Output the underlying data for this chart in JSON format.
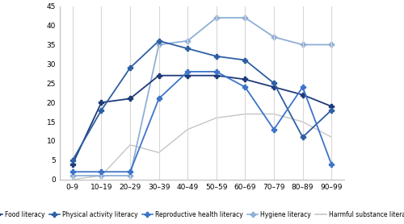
{
  "x_labels": [
    "0–9",
    "10–19",
    "20–29",
    "30–39",
    "40–49",
    "50–59",
    "60–69",
    "70–79",
    "80–89",
    "90–99"
  ],
  "series": [
    {
      "name": "Food literacy",
      "values": [
        4,
        20,
        21,
        27,
        27,
        27,
        26,
        24,
        22,
        19
      ],
      "color": "#1f3a7a",
      "marker": "P",
      "markersize": 4,
      "linewidth": 1.3,
      "zorder": 3
    },
    {
      "name": "Physical activity literacy",
      "values": [
        5,
        18,
        29,
        36,
        34,
        32,
        31,
        25,
        11,
        18
      ],
      "color": "#2e5fa3",
      "marker": "P",
      "markersize": 4,
      "linewidth": 1.3,
      "zorder": 3
    },
    {
      "name": "Reproductive health literacy",
      "values": [
        2,
        2,
        2,
        21,
        28,
        28,
        24,
        13,
        24,
        4
      ],
      "color": "#3d74c8",
      "marker": "P",
      "markersize": 4,
      "linewidth": 1.3,
      "zorder": 3
    },
    {
      "name": "Hygiene literacy",
      "values": [
        1,
        1,
        1,
        35,
        36,
        42,
        42,
        37,
        35,
        35
      ],
      "color": "#8fafd6",
      "marker": "P",
      "markersize": 4,
      "linewidth": 1.3,
      "zorder": 2
    },
    {
      "name": "Harmful substance literacy",
      "values": [
        0,
        1,
        9,
        7,
        13,
        16,
        17,
        17,
        15,
        11
      ],
      "color": "#c5c5c5",
      "marker": null,
      "markersize": 0,
      "linewidth": 1.0,
      "zorder": 1
    }
  ],
  "ylim": [
    0,
    45
  ],
  "yticks": [
    0,
    5,
    10,
    15,
    20,
    25,
    30,
    35,
    40,
    45
  ],
  "background_color": "#ffffff",
  "grid_color": "#d8d8d8",
  "legend_fontsize": 5.5,
  "tick_fontsize": 6.5,
  "figsize": [
    5.0,
    2.78
  ],
  "dpi": 100
}
